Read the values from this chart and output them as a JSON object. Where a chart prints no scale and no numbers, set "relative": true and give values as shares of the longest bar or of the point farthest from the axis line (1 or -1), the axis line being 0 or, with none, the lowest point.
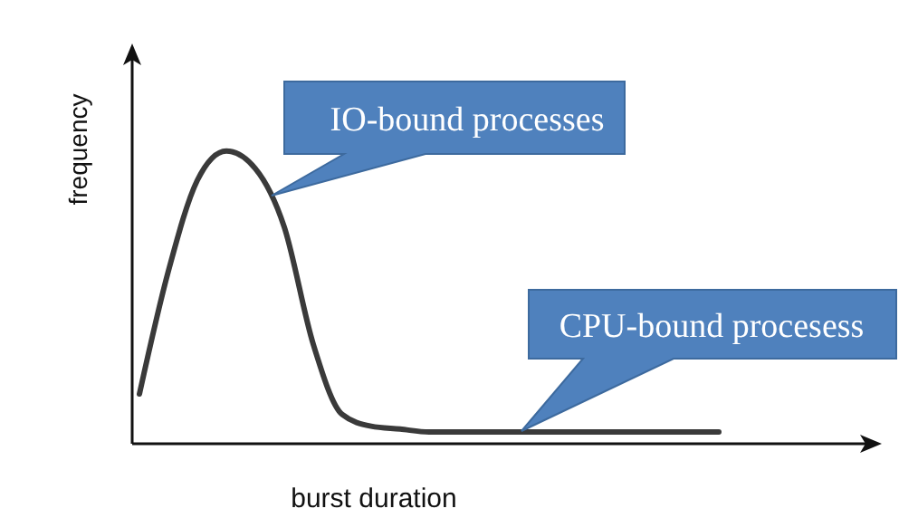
{
  "chart_data": {
    "type": "line",
    "relative": true,
    "xlabel": "burst duration",
    "ylabel": "frequency",
    "marker": "none",
    "categories": [
      null,
      null,
      null,
      null,
      null,
      null,
      null,
      null,
      null,
      null,
      null,
      null,
      null,
      null,
      null,
      null,
      null,
      null,
      null,
      null,
      null,
      null,
      null,
      null,
      null,
      null
    ],
    "series": [
      {
        "color": "#3a3a3a",
        "values": [
          0.17,
          0.59,
          0.9,
          1,
          0.94,
          0.74,
          0.34,
          0.1,
          0.06,
          0.05,
          0.04,
          0.04,
          0.04,
          0.04,
          0.04,
          0.04,
          0.04,
          0.04,
          0.04,
          0.04,
          0.04,
          null,
          null,
          null,
          null,
          null
        ]
      }
    ],
    "annotations": [
      "IO-bound processes",
      "CPU-bound procesess"
    ]
  }
}
